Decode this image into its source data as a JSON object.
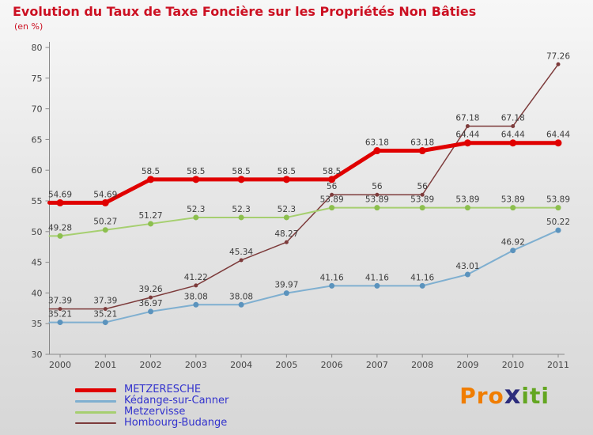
{
  "header": {
    "title": "Evolution du Taux de Taxe Foncière sur les Propriétés Non Bâties",
    "subtitle": "(en %)"
  },
  "chart_data": {
    "type": "line",
    "x": [
      2000,
      2001,
      2002,
      2003,
      2004,
      2005,
      2006,
      2007,
      2008,
      2009,
      2010,
      2011
    ],
    "ylim": [
      30,
      80
    ],
    "yticks": [
      30,
      35,
      40,
      45,
      50,
      55,
      60,
      65,
      70,
      75,
      80
    ],
    "xlabel": "",
    "ylabel": "en %",
    "axis_color": "#888888",
    "tick_label_color": "#444444",
    "value_label_color": "#3c3c3c",
    "series": [
      {
        "name": "METZERESCHE",
        "color": "#e00000",
        "marker_color": "#e00000",
        "line_width": 5,
        "marker_radius": 4.5,
        "values": [
          54.69,
          54.69,
          58.5,
          58.5,
          58.5,
          58.5,
          58.5,
          63.18,
          63.18,
          64.44,
          64.44,
          64.44
        ]
      },
      {
        "name": "Kédange-sur-Canner",
        "color": "#7fafd0",
        "marker_color": "#5b93bd",
        "line_width": 2,
        "marker_radius": 3.5,
        "values": [
          35.21,
          35.21,
          36.97,
          38.08,
          38.08,
          39.97,
          41.16,
          41.16,
          41.16,
          43.01,
          46.92,
          50.22
        ]
      },
      {
        "name": "Metzervisse",
        "color": "#a6cf70",
        "marker_color": "#8cbf4e",
        "line_width": 2,
        "marker_radius": 3.5,
        "values": [
          49.28,
          50.27,
          51.27,
          52.3,
          52.3,
          52.3,
          53.89,
          53.89,
          53.89,
          53.89,
          53.89,
          53.89
        ]
      },
      {
        "name": "Hombourg-Budange",
        "color": "#7d3b3b",
        "marker_color": "#7d3b3b",
        "line_width": 1.5,
        "marker_radius": 2.5,
        "values": [
          37.39,
          37.39,
          39.26,
          41.22,
          45.34,
          48.27,
          56,
          56,
          56,
          67.18,
          67.18,
          77.26
        ]
      }
    ]
  },
  "legend": {
    "text_color": "#3232cd",
    "items": [
      "METZERESCHE",
      "Kédange-sur-Canner",
      "Metzervisse",
      "Hombourg-Budange"
    ]
  },
  "logo": {
    "parts": [
      {
        "text": "Pro",
        "color": "#f07d00",
        "size": 28
      },
      {
        "text": "x",
        "color": "#2c2c7c",
        "size": 32
      },
      {
        "text": "iti",
        "color": "#63a621",
        "size": 28
      }
    ]
  }
}
